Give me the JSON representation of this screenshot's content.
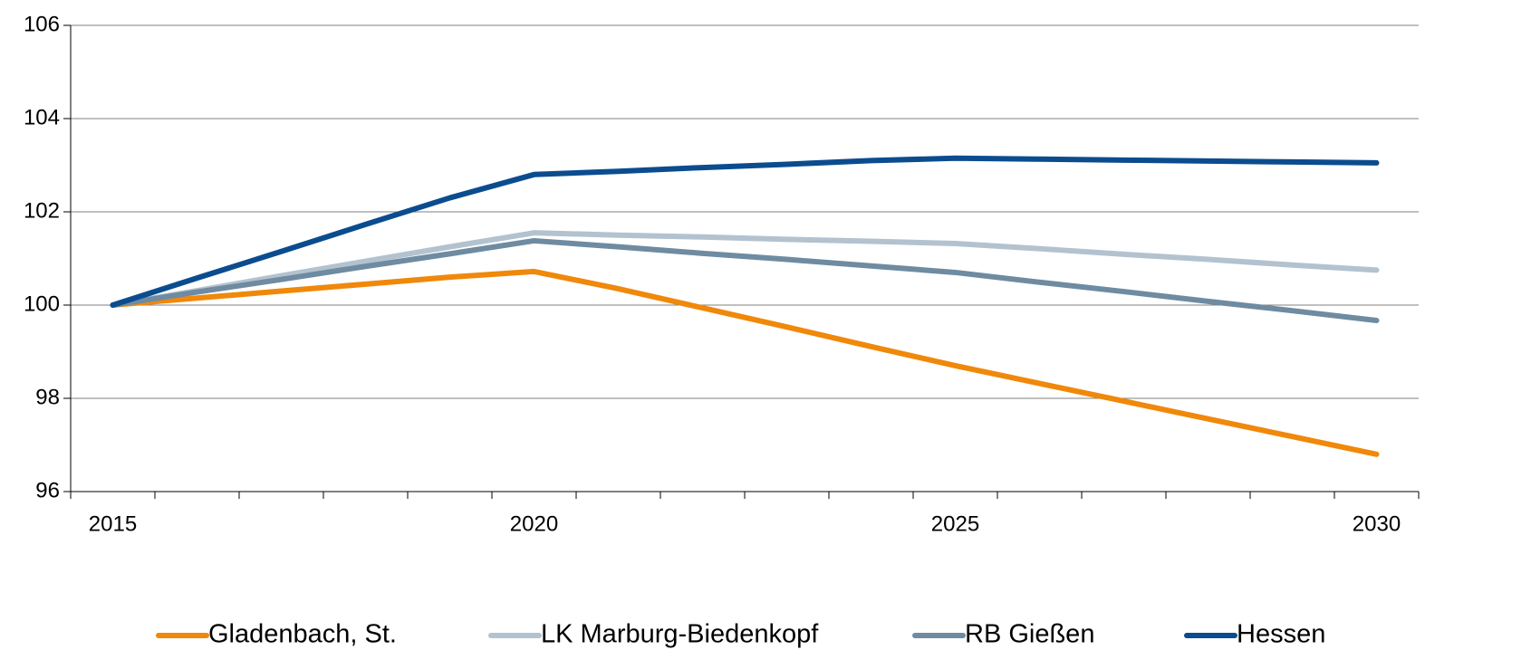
{
  "chart_data": {
    "type": "line",
    "categories": [
      "2015",
      null,
      null,
      null,
      null,
      "2020",
      null,
      null,
      null,
      null,
      "2025",
      null,
      null,
      null,
      null,
      "2030"
    ],
    "series": [
      {
        "name": "Gladenbach, St.",
        "color": "#f0880a",
        "values": [
          100,
          100.15,
          100.3,
          100.45,
          100.6,
          100.72,
          100.35,
          99.94,
          99.53,
          99.11,
          98.7,
          98.32,
          97.94,
          97.56,
          97.18,
          96.8
        ]
      },
      {
        "name": "LK Marburg-Biedenkopf",
        "color": "#b3c2cf",
        "values": [
          100,
          100.31,
          100.63,
          100.94,
          101.25,
          101.55,
          101.5,
          101.46,
          101.41,
          101.37,
          101.32,
          101.21,
          101.09,
          100.98,
          100.86,
          100.75
        ]
      },
      {
        "name": "RB Gießen",
        "color": "#6e8ba1",
        "values": [
          100,
          100.28,
          100.55,
          100.83,
          101.1,
          101.38,
          101.25,
          101.11,
          100.98,
          100.84,
          100.7,
          100.49,
          100.29,
          100.08,
          99.88,
          99.67
        ]
      },
      {
        "name": "Hessen",
        "color": "#0b4c8f",
        "values": [
          100,
          100.58,
          101.15,
          101.73,
          102.3,
          102.8,
          102.87,
          102.95,
          103.02,
          103.1,
          103.15,
          103.13,
          103.11,
          103.09,
          103.07,
          103.05
        ]
      }
    ],
    "ylim": [
      96,
      106
    ],
    "yticks": [
      96,
      98,
      100,
      102,
      104,
      106
    ],
    "grid": true,
    "legend": "bottom"
  }
}
